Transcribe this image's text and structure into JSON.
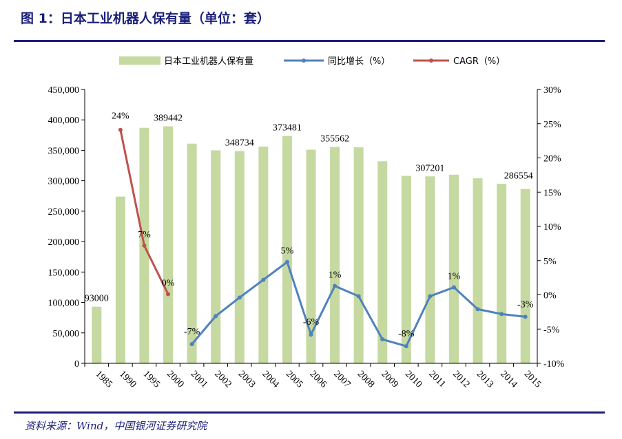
{
  "header": {
    "title": "图 1：日本工业机器人保有量（单位：套）"
  },
  "footer": {
    "source": "资料来源：Wind，中国银河证券研究院"
  },
  "colors": {
    "bar": "#c5d9a1",
    "growth": "#4f81bd",
    "cagr": "#c0504d",
    "frame": "#1a1f7a"
  },
  "chart_data": {
    "type": "bar",
    "categories": [
      "1985",
      "1990",
      "1995",
      "2000",
      "2001",
      "2002",
      "2003",
      "2004",
      "2005",
      "2006",
      "2007",
      "2008",
      "2009",
      "2010",
      "2011",
      "2012",
      "2013",
      "2014",
      "2015"
    ],
    "series": [
      {
        "name": "日本工业机器人保有量",
        "type": "bar",
        "axis": "left",
        "values": [
          93000,
          274000,
          387000,
          389442,
          361000,
          350000,
          348734,
          356000,
          373481,
          351000,
          355562,
          355000,
          332000,
          308000,
          307201,
          310000,
          304000,
          295000,
          286554
        ]
      },
      {
        "name": "同比增长（%）",
        "type": "line",
        "axis": "right",
        "x": [
          "2001",
          "2002",
          "2003",
          "2004",
          "2005",
          "2006",
          "2007",
          "2008",
          "2009",
          "2010",
          "2011",
          "2012",
          "2013",
          "2014",
          "2015"
        ],
        "values": [
          -7.2,
          -3.1,
          -0.4,
          2.2,
          4.8,
          -5.8,
          1.3,
          -0.2,
          -6.5,
          -7.5,
          -0.2,
          1.1,
          -2.1,
          -2.8,
          -3.2
        ]
      },
      {
        "name": "CAGR（%）",
        "type": "line",
        "axis": "right",
        "x": [
          "1990",
          "1995",
          "2000"
        ],
        "values": [
          24.1,
          7.2,
          0.1
        ]
      }
    ],
    "bar_labels": [
      {
        "category": "1985",
        "text": "93000"
      },
      {
        "category": "2000",
        "text": "389442"
      },
      {
        "category": "2003",
        "text": "348734"
      },
      {
        "category": "2005",
        "text": "373481"
      },
      {
        "category": "2007",
        "text": "355562"
      },
      {
        "category": "2011",
        "text": "307201"
      },
      {
        "category": "2015",
        "text": "286554"
      }
    ],
    "point_labels": [
      {
        "series": 2,
        "category": "1990",
        "text": "24%"
      },
      {
        "series": 2,
        "category": "1995",
        "text": "7%"
      },
      {
        "series": 2,
        "category": "2000",
        "text": "0%"
      },
      {
        "series": 1,
        "category": "2001",
        "text": "-7%"
      },
      {
        "series": 1,
        "category": "2005",
        "text": "5%"
      },
      {
        "series": 1,
        "category": "2006",
        "text": "-6%"
      },
      {
        "series": 1,
        "category": "2007",
        "text": "1%"
      },
      {
        "series": 1,
        "category": "2010",
        "text": "-8%"
      },
      {
        "series": 1,
        "category": "2012",
        "text": "1%"
      },
      {
        "series": 1,
        "category": "2015",
        "text": "-3%"
      }
    ],
    "ylim_left": [
      0,
      450000
    ],
    "yticks_left": [
      "0",
      "50,000",
      "100,000",
      "150,000",
      "200,000",
      "250,000",
      "300,000",
      "350,000",
      "400,000",
      "450,000"
    ],
    "ylim_right": [
      -10,
      30
    ],
    "yticks_right": [
      "-10%",
      "-5%",
      "0%",
      "5%",
      "10%",
      "15%",
      "20%",
      "25%",
      "30%"
    ],
    "legend": [
      "日本工业机器人保有量",
      "同比增长（%）",
      "CAGR（%）"
    ],
    "legend_position": "top",
    "grid": false
  }
}
